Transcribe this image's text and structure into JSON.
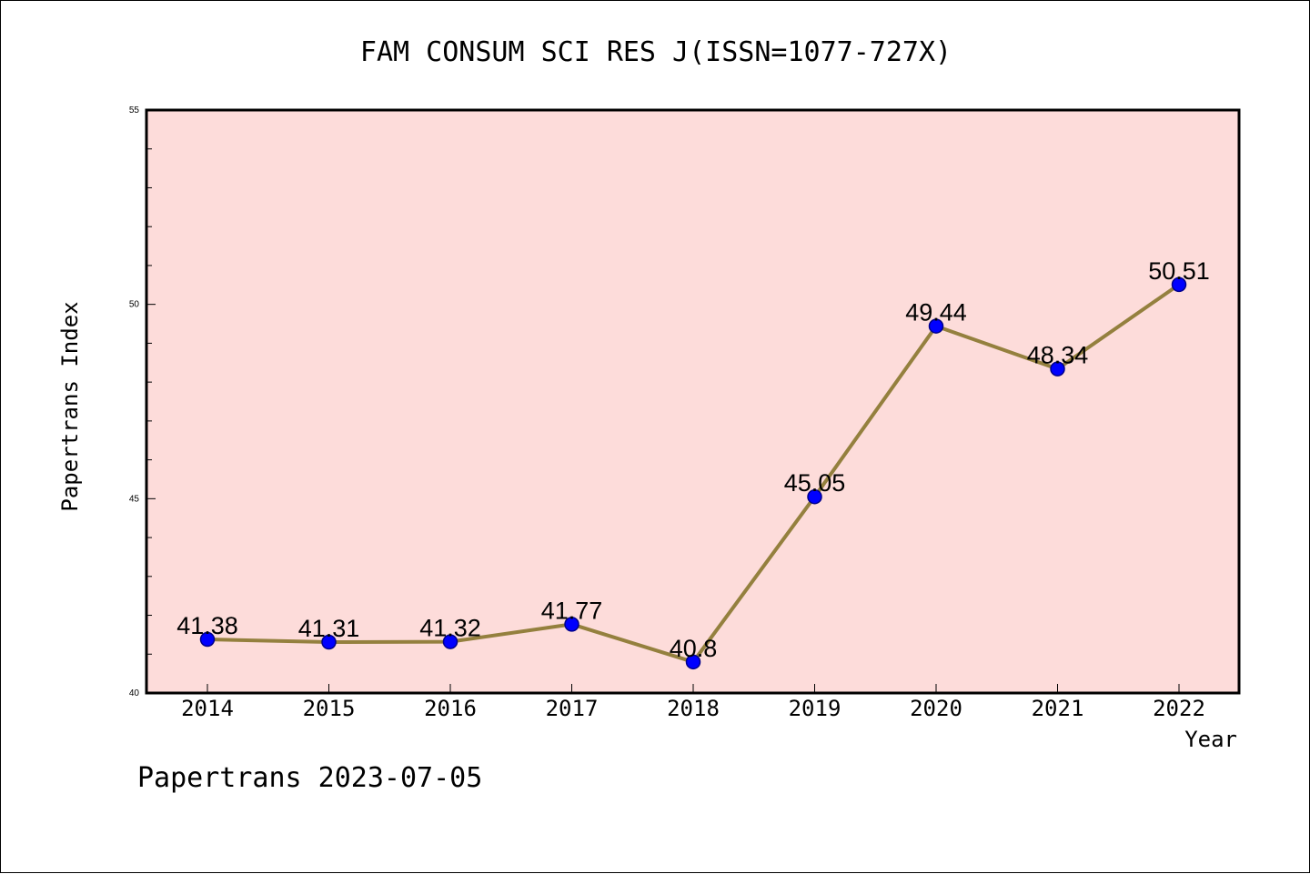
{
  "chart_data": {
    "type": "line",
    "title": "FAM CONSUM SCI RES J(ISSN=1077-727X)",
    "xlabel": "Year",
    "ylabel": "Papertrans Index",
    "footer": "Papertrans 2023-07-05",
    "x": [
      "2014",
      "2015",
      "2016",
      "2017",
      "2018",
      "2019",
      "2020",
      "2021",
      "2022"
    ],
    "values": [
      41.38,
      41.31,
      41.32,
      41.77,
      40.8,
      45.05,
      49.44,
      48.34,
      50.51
    ],
    "data_labels": [
      "41.38",
      "41.31",
      "41.32",
      "41.77",
      "40.8",
      "45.05",
      "49.44",
      "48.34",
      "50.51"
    ],
    "ylim": [
      40,
      55
    ],
    "yticks": [
      "40",
      "45",
      "50",
      "55"
    ],
    "grid": false,
    "legend": "none",
    "colors": {
      "plot_background": "#FDDCDA",
      "line": "#94803E",
      "marker": "#0000FF",
      "marker_edge": "#00008B"
    }
  }
}
